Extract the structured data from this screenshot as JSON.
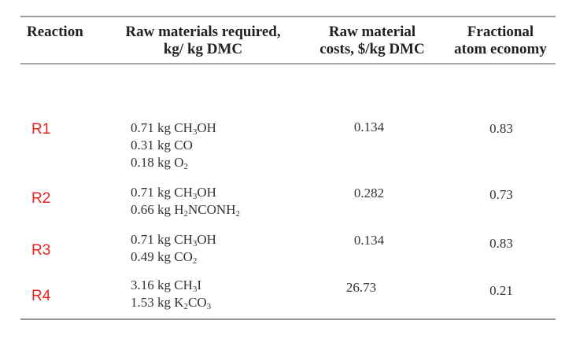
{
  "headers": {
    "reaction": "Reaction",
    "raw_line1": "Raw materials required,",
    "raw_line2": "kg/ kg DMC",
    "cost_line1": "Raw material",
    "cost_line2": "costs, $/kg DMC",
    "atom_line1": "Fractional",
    "atom_line2": "atom economy"
  },
  "rows": [
    {
      "label": "R1",
      "materials": [
        {
          "pre": "0.71 kg CH",
          "sub1": "3",
          "mid": "OH",
          "sub2": "",
          "post": ""
        },
        {
          "pre": "0.31 kg CO",
          "sub1": "",
          "mid": "",
          "sub2": "",
          "post": ""
        },
        {
          "pre": "0.18 kg O",
          "sub1": "2",
          "mid": "",
          "sub2": "",
          "post": ""
        }
      ],
      "cost": "0.134",
      "atom_economy": "0.83"
    },
    {
      "label": "R2",
      "materials": [
        {
          "pre": "0.71 kg CH",
          "sub1": "3",
          "mid": "OH",
          "sub2": "",
          "post": ""
        },
        {
          "pre": "0.66 kg H",
          "sub1": "2",
          "mid": "NCONH",
          "sub2": "2",
          "post": ""
        }
      ],
      "cost": "0.282",
      "atom_economy": "0.73"
    },
    {
      "label": "R3",
      "materials": [
        {
          "pre": "0.71 kg CH",
          "sub1": "3",
          "mid": "OH",
          "sub2": "",
          "post": ""
        },
        {
          "pre": "0.49 kg CO",
          "sub1": "2",
          "mid": "",
          "sub2": "",
          "post": ""
        }
      ],
      "cost": "0.134",
      "atom_economy": "0.83"
    },
    {
      "label": "R4",
      "materials": [
        {
          "pre": "3.16 kg CH",
          "sub1": "3",
          "mid": "I",
          "sub2": "",
          "post": ""
        },
        {
          "pre": "1.53 kg K",
          "sub1": "2",
          "mid": "CO",
          "sub2": "3",
          "post": ""
        }
      ],
      "cost": "26.73",
      "atom_economy": "0.21"
    }
  ]
}
